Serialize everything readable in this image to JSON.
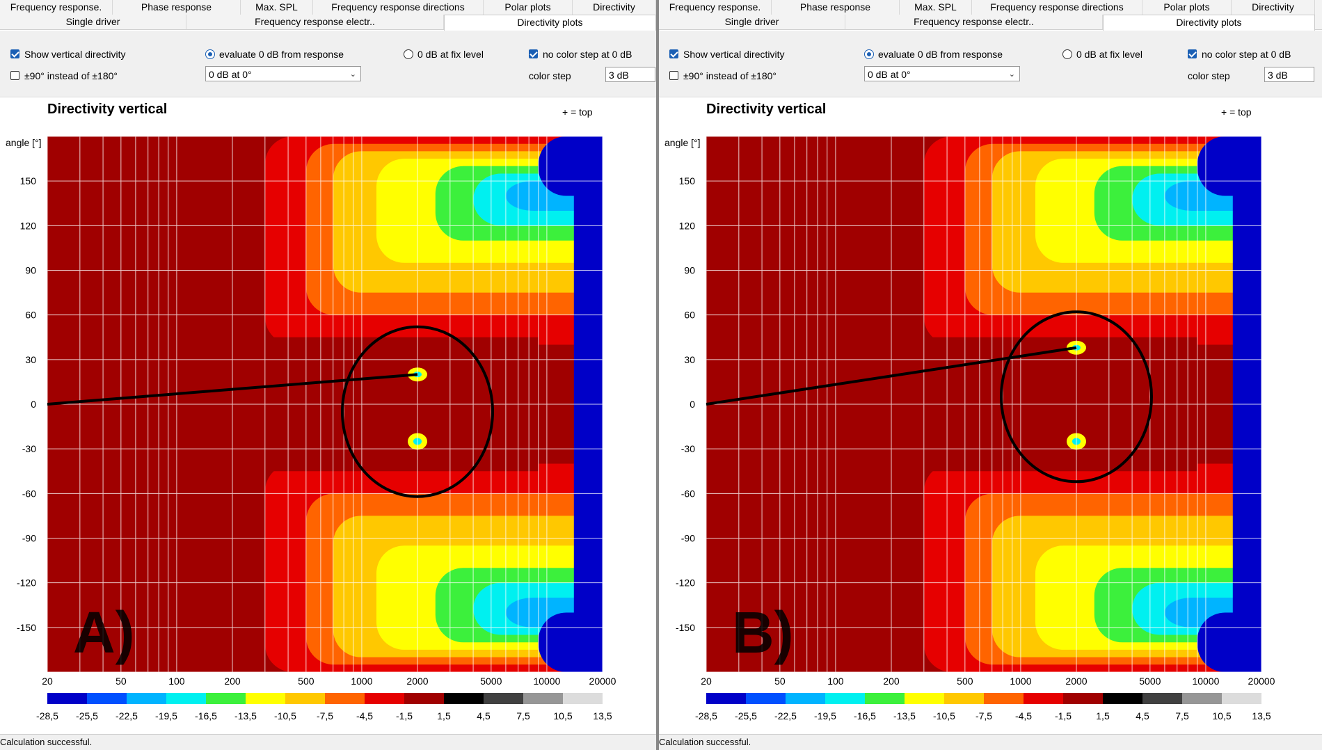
{
  "panels": [
    {
      "tabs_row1": [
        "Frequency response.",
        "Phase response",
        "Max. SPL",
        "Frequency response directions",
        "Polar plots",
        "Directivity"
      ],
      "tabs_row2": [
        "Single driver",
        "Frequency response electr..",
        "Directivity plots"
      ],
      "active_tab": "Directivity plots",
      "options": {
        "show_vertical": {
          "label": "Show vertical directivity",
          "checked": true
        },
        "pm90": {
          "label": "±90° instead of ±180°",
          "checked": false
        },
        "evaluate_0db": {
          "label": "evaluate 0 dB from response",
          "selected": true
        },
        "fix_level": {
          "label": "0 dB at fix level",
          "selected": false
        },
        "no_color_step": {
          "label": "no color step at 0 dB",
          "checked": true
        },
        "reference_select": "0 dB at 0°",
        "color_step_label": "color step",
        "color_step_value": "3 dB"
      },
      "chart_title": "Directivity vertical",
      "top_note": "+ = top",
      "panel_label": "A)",
      "status": "Calculation successful."
    },
    {
      "tabs_row1": [
        "Frequency response.",
        "Phase response",
        "Max. SPL",
        "Frequency response directions",
        "Polar plots",
        "Directivity"
      ],
      "tabs_row2": [
        "Single driver",
        "Frequency response electr..",
        "Directivity plots"
      ],
      "active_tab": "Directivity plots",
      "options": {
        "show_vertical": {
          "label": "Show vertical directivity",
          "checked": true
        },
        "pm90": {
          "label": "±90° instead of ±180°",
          "checked": false
        },
        "evaluate_0db": {
          "label": "evaluate 0 dB from response",
          "selected": true
        },
        "fix_level": {
          "label": "0 dB at fix level",
          "selected": false
        },
        "no_color_step": {
          "label": "no color step at 0 dB",
          "checked": true
        },
        "reference_select": "0 dB at 0°",
        "color_step_label": "color step",
        "color_step_value": "3 dB"
      },
      "chart_title": "Directivity vertical",
      "top_note": "+ = top",
      "panel_label": "B)",
      "status": "Calculation successful."
    }
  ],
  "chart_data": [
    {
      "type": "heatmap",
      "title": "Directivity vertical",
      "ylabel": "angle [°]",
      "x_scale": "log",
      "xlim": [
        20,
        20000
      ],
      "ylim": [
        -180,
        180
      ],
      "x_ticks": [
        "20",
        "50",
        "100",
        "200",
        "500",
        "1000",
        "2000",
        "5000",
        "10000",
        "20000"
      ],
      "y_ticks": [
        "150",
        "120",
        "90",
        "60",
        "30",
        "0",
        "-30",
        "-60",
        "-90",
        "-120",
        "-150"
      ],
      "colorbar_labels": [
        "-28,5",
        "-25,5",
        "-22,5",
        "-19,5",
        "-16,5",
        "-13,5",
        "-10,5",
        "-7,5",
        "-4,5",
        "-1,5",
        "1,5",
        "4,5",
        "7,5",
        "10,5",
        "13,5"
      ],
      "colorbar_colors": [
        "#0000c8",
        "#0050ff",
        "#00b4ff",
        "#00f0f0",
        "#3cf03c",
        "#ffff00",
        "#ffc800",
        "#ff6400",
        "#e60000",
        "#a00000",
        "#000000",
        "#404040",
        "#969696",
        "#dcdcdc"
      ],
      "annotation_circle_center": [
        2000,
        -5
      ],
      "annotation_line_target": [
        2000,
        20
      ]
    },
    {
      "type": "heatmap",
      "title": "Directivity vertical",
      "ylabel": "angle [°]",
      "x_scale": "log",
      "xlim": [
        20,
        20000
      ],
      "ylim": [
        -180,
        180
      ],
      "x_ticks": [
        "20",
        "50",
        "100",
        "200",
        "500",
        "1000",
        "2000",
        "5000",
        "10000",
        "20000"
      ],
      "y_ticks": [
        "150",
        "120",
        "90",
        "60",
        "30",
        "0",
        "-30",
        "-60",
        "-90",
        "-120",
        "-150"
      ],
      "colorbar_labels": [
        "-28,5",
        "-25,5",
        "-22,5",
        "-19,5",
        "-16,5",
        "-13,5",
        "-10,5",
        "-7,5",
        "-4,5",
        "-1,5",
        "1,5",
        "4,5",
        "7,5",
        "10,5",
        "13,5"
      ],
      "colorbar_colors": [
        "#0000c8",
        "#0050ff",
        "#00b4ff",
        "#00f0f0",
        "#3cf03c",
        "#ffff00",
        "#ffc800",
        "#ff6400",
        "#e60000",
        "#a00000",
        "#000000",
        "#404040",
        "#969696",
        "#dcdcdc"
      ],
      "annotation_circle_center": [
        2000,
        5
      ],
      "annotation_line_target": [
        2000,
        38
      ]
    }
  ]
}
